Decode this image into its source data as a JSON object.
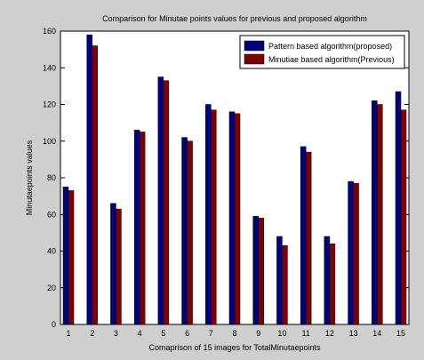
{
  "chart_data": {
    "type": "bar",
    "title": "Comparison for Minutae points values for previous and proposed algorithm",
    "xlabel": "Comaprison of 15 images for TotalMinutaepoints",
    "ylabel": "Minutaepoints values",
    "categories": [
      "1",
      "2",
      "3",
      "4",
      "5",
      "6",
      "7",
      "8",
      "9",
      "10",
      "11",
      "12",
      "13",
      "14",
      "15"
    ],
    "ylim": [
      0,
      160
    ],
    "yticks": [
      0,
      20,
      40,
      60,
      80,
      100,
      120,
      140,
      160
    ],
    "grid": false,
    "legend_position": "top-right",
    "series": [
      {
        "name": "Pattern based algorithm(proposed)",
        "color": "#00007f",
        "values": [
          75,
          158,
          66,
          106,
          135,
          102,
          120,
          116,
          59,
          48,
          97,
          48,
          78,
          122,
          127
        ]
      },
      {
        "name": "Minutiae based algorithm(Previous)",
        "color": "#7f0000",
        "values": [
          73,
          152,
          63,
          105,
          133,
          100,
          117,
          115,
          58,
          43,
          94,
          44,
          77,
          120,
          117
        ]
      }
    ]
  }
}
